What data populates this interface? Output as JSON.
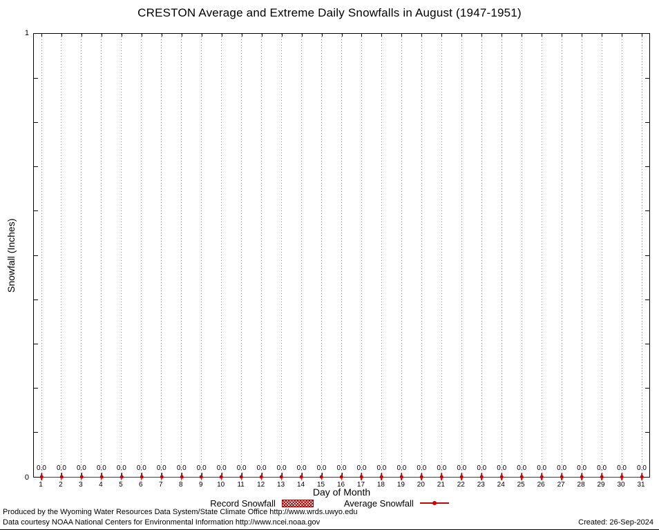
{
  "title": "CRESTON Average and Extreme Daily Snowfalls in August (1947-1951)",
  "chart_data": {
    "type": "line",
    "title": "CRESTON Average and Extreme Daily Snowfalls in August (1947-1951)",
    "xlabel": "Day of Month",
    "ylabel": "Snowfall (Inches)",
    "ylim": [
      0,
      1
    ],
    "y_tick_labels": [
      "0",
      "1"
    ],
    "grid": "vertical-dotted-per-day",
    "legend_position": "bottom-center",
    "x": [
      1,
      2,
      3,
      4,
      5,
      6,
      7,
      8,
      9,
      10,
      11,
      12,
      13,
      14,
      15,
      16,
      17,
      18,
      19,
      20,
      21,
      22,
      23,
      24,
      25,
      26,
      27,
      28,
      29,
      30,
      31
    ],
    "series": [
      {
        "name": "Record Snowfall",
        "values": [
          0.0,
          0.0,
          0.0,
          0.0,
          0.0,
          0.0,
          0.0,
          0.0,
          0.0,
          0.0,
          0.0,
          0.0,
          0.0,
          0.0,
          0.0,
          0.0,
          0.0,
          0.0,
          0.0,
          0.0,
          0.0,
          0.0,
          0.0,
          0.0,
          0.0,
          0.0,
          0.0,
          0.0,
          0.0,
          0.0,
          0.0
        ]
      },
      {
        "name": "Average Snowfall",
        "values": [
          0.0,
          0.0,
          0.0,
          0.0,
          0.0,
          0.0,
          0.0,
          0.0,
          0.0,
          0.0,
          0.0,
          0.0,
          0.0,
          0.0,
          0.0,
          0.0,
          0.0,
          0.0,
          0.0,
          0.0,
          0.0,
          0.0,
          0.0,
          0.0,
          0.0,
          0.0,
          0.0,
          0.0,
          0.0,
          0.0,
          0.0
        ]
      }
    ],
    "point_label_format": "0.0"
  },
  "axes": {
    "y_top_label": "1",
    "y_bottom_label": "0",
    "y_title": "Snowfall (Inches)",
    "x_title": "Day of Month"
  },
  "legend": {
    "record_label": "Record Snowfall",
    "average_label": "Average Snowfall"
  },
  "colors": {
    "accent_red": "#cc0000",
    "accent_dark_red": "#990000",
    "grid_gray": "#999999"
  },
  "footer": {
    "line1": "Produced by the Wyoming Water Resources Data System/State Climate Office http://www.wrds.uwyo.edu",
    "line2": "Data courtesy NOAA National Centers for Environmental Information http://www.ncei.noaa.gov",
    "created": "Created: 26-Sep-2024"
  }
}
